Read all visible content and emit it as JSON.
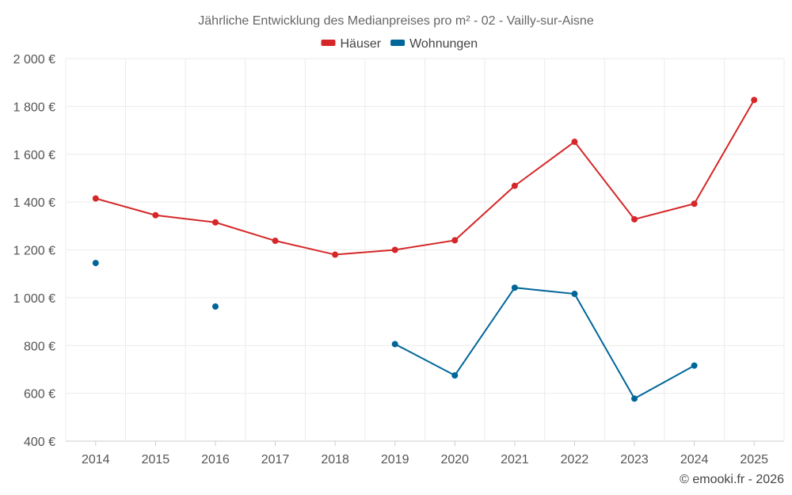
{
  "chart_data": {
    "type": "line",
    "title": "Jährliche Entwicklung des Medianpreises pro m² - 02 - Vailly-sur-Aisne",
    "xlabel": "",
    "ylabel": "",
    "categories": [
      "2014",
      "2015",
      "2016",
      "2017",
      "2018",
      "2019",
      "2020",
      "2021",
      "2022",
      "2023",
      "2024",
      "2025"
    ],
    "ylim": [
      400,
      2000
    ],
    "yticks": [
      400,
      600,
      800,
      1000,
      1200,
      1400,
      1600,
      1800,
      2000
    ],
    "ytick_labels": [
      "400 €",
      "600 €",
      "800 €",
      "1 000 €",
      "1 200 €",
      "1 400 €",
      "1 600 €",
      "1 800 €",
      "2 000 €"
    ],
    "grid": true,
    "legend_position": "top-center",
    "series": [
      {
        "name": "Häuser",
        "color": "#d62728",
        "values": [
          1415,
          1345,
          1315,
          1238,
          1180,
          1200,
          1240,
          1468,
          1652,
          1328,
          1393,
          1827
        ]
      },
      {
        "name": "Wohnungen",
        "color": "#006699",
        "values": [
          1145,
          null,
          963,
          null,
          null,
          806,
          675,
          1042,
          1016,
          578,
          716,
          null
        ]
      }
    ],
    "credit": "© emooki.fr - 2026"
  }
}
